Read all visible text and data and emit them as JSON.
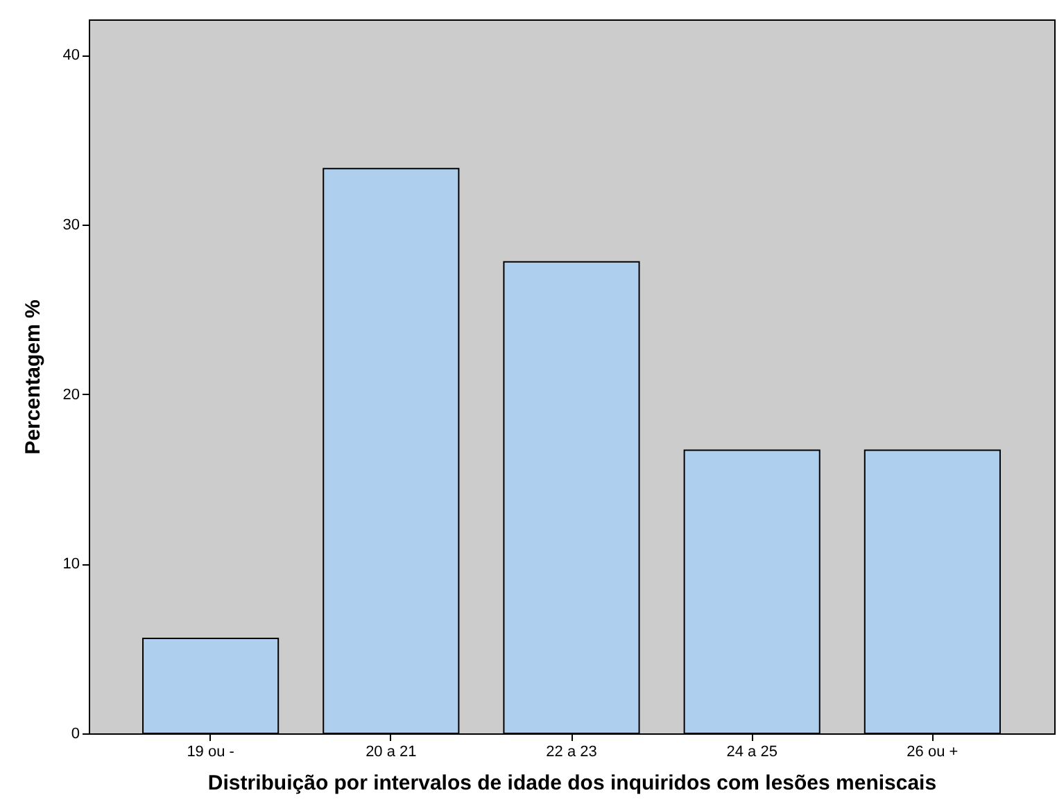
{
  "chart_data": {
    "type": "bar",
    "xlabel": "Distribuição por intervalos de idade dos inquiridos com lesões meniscais",
    "ylabel": "Percentagem %",
    "categories": [
      "19 ou -",
      "20 a 21",
      "22 a 23",
      "24 a 25",
      "26 ou +"
    ],
    "values": [
      5.6,
      33.3,
      27.8,
      16.7,
      16.7
    ],
    "color": "#aed0ee",
    "ylim": [
      0,
      42.1
    ],
    "yticks": [
      0,
      10,
      20,
      30,
      40
    ],
    "grid": false
  }
}
